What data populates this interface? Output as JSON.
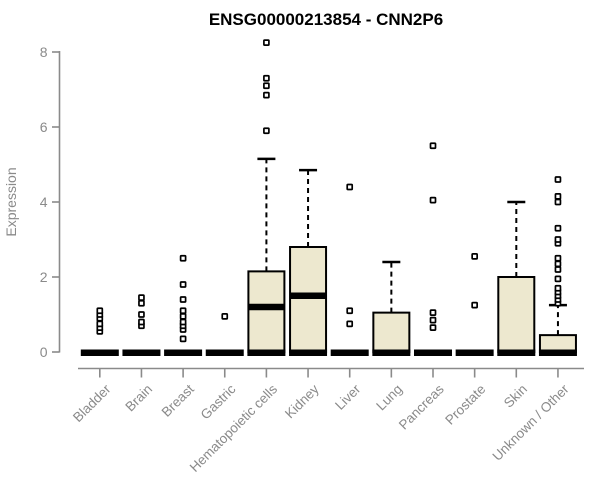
{
  "colors": {
    "box_fill": "#EDE8CF",
    "box_stroke": "#000000",
    "median": "#000000",
    "whisker": "#000000",
    "outlier_stroke": "#000000",
    "outlier_fill": "#FFFFFF",
    "axis": "#8A8A8A",
    "tick_label": "#8A8A8A",
    "title": "#000000",
    "background": "#FFFFFF"
  },
  "chart_data": {
    "type": "boxplot",
    "title": "ENSG00000213854 - CNN2P6",
    "xlabel": "",
    "ylabel": "Expression",
    "ylim": [
      0,
      8.4
    ],
    "yticks": [
      0,
      2,
      4,
      6,
      8
    ],
    "grid": "off",
    "legend": "none",
    "categories": [
      "Bladder",
      "Brain",
      "Breast",
      "Gastric",
      "Hematopoietic cells",
      "Kidney",
      "Liver",
      "Lung",
      "Pancreas",
      "Prostate",
      "Skin",
      "Unknown / Other"
    ],
    "series": [
      {
        "name": "Bladder",
        "whisker_low": 0,
        "q1": 0,
        "median": 0,
        "q3": 0,
        "whisker_high": 0,
        "outliers": [
          0.55,
          0.65,
          0.75,
          0.9,
          1.0,
          1.1
        ]
      },
      {
        "name": "Brain",
        "whisker_low": 0,
        "q1": 0,
        "median": 0,
        "q3": 0,
        "whisker_high": 0,
        "outliers": [
          0.7,
          0.8,
          1.0,
          1.3,
          1.45
        ]
      },
      {
        "name": "Breast",
        "whisker_low": 0,
        "q1": 0,
        "median": 0,
        "q3": 0,
        "whisker_high": 0,
        "outliers": [
          0.35,
          0.6,
          0.7,
          0.8,
          0.95,
          1.1,
          1.4,
          1.8,
          2.5
        ]
      },
      {
        "name": "Gastric",
        "whisker_low": 0,
        "q1": 0,
        "median": 0,
        "q3": 0,
        "whisker_high": 0,
        "outliers": [
          0.95
        ]
      },
      {
        "name": "Hematopoietic cells",
        "whisker_low": 0,
        "q1": 0,
        "median": 1.2,
        "q3": 2.15,
        "whisker_high": 5.15,
        "outliers": [
          5.9,
          6.85,
          7.1,
          7.3,
          8.25
        ]
      },
      {
        "name": "Kidney",
        "whisker_low": 0,
        "q1": 0,
        "median": 1.5,
        "q3": 2.8,
        "whisker_high": 4.85,
        "outliers": []
      },
      {
        "name": "Liver",
        "whisker_low": 0,
        "q1": 0,
        "median": 0,
        "q3": 0,
        "whisker_high": 0,
        "outliers": [
          0.75,
          1.1,
          4.4
        ]
      },
      {
        "name": "Lung",
        "whisker_low": 0,
        "q1": 0,
        "median": 0,
        "q3": 1.05,
        "whisker_high": 2.4,
        "outliers": []
      },
      {
        "name": "Pancreas",
        "whisker_low": 0,
        "q1": 0,
        "median": 0,
        "q3": 0,
        "whisker_high": 0,
        "outliers": [
          0.65,
          0.85,
          1.05,
          4.05,
          5.5
        ]
      },
      {
        "name": "Prostate",
        "whisker_low": 0,
        "q1": 0,
        "median": 0,
        "q3": 0,
        "whisker_high": 0,
        "outliers": [
          1.25,
          2.55
        ]
      },
      {
        "name": "Skin",
        "whisker_low": 0,
        "q1": 0,
        "median": 0,
        "q3": 2.0,
        "whisker_high": 4.0,
        "outliers": []
      },
      {
        "name": "Unknown / Other",
        "whisker_low": 0,
        "q1": 0,
        "median": 0,
        "q3": 0.45,
        "whisker_high": 1.25,
        "outliers": [
          1.3,
          1.4,
          1.5,
          1.6,
          1.7,
          1.95,
          2.2,
          2.35,
          2.5,
          2.9,
          3.0,
          3.3,
          4.0,
          4.15,
          4.6
        ]
      }
    ]
  }
}
